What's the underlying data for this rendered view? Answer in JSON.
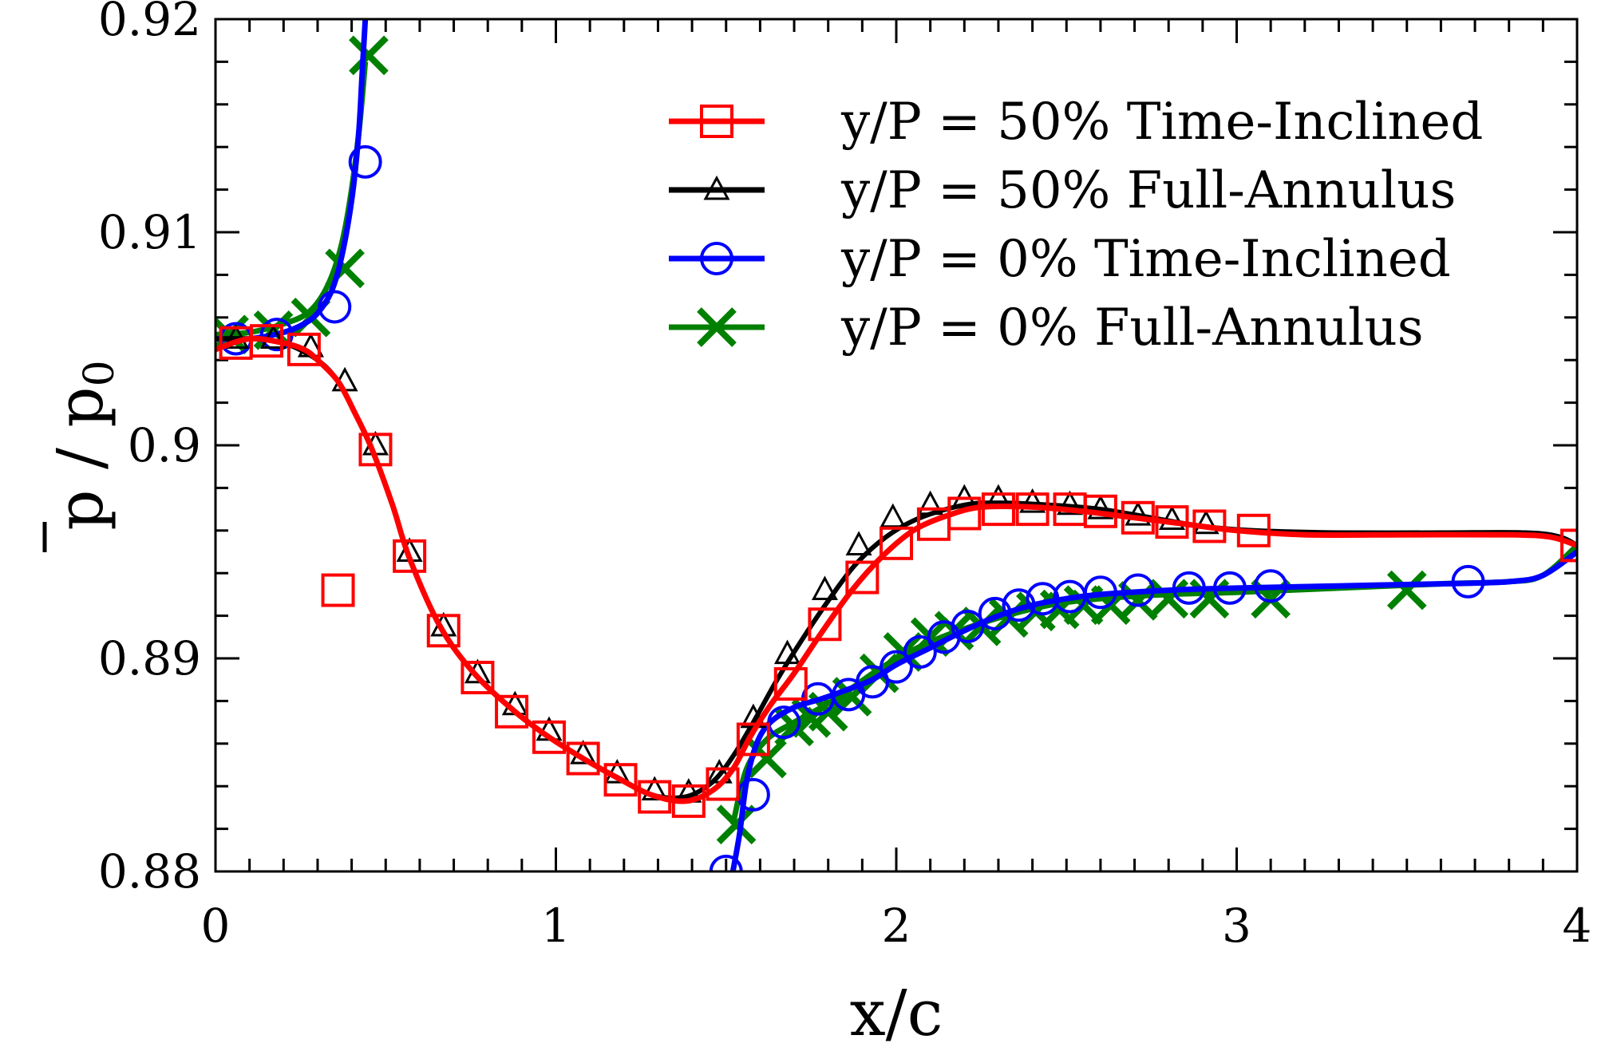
{
  "chart_data": {
    "type": "line",
    "title": "",
    "xlabel": "x/c",
    "ylabel_base": "p",
    "ylabel_sep": " / ",
    "ylabel_den": "p",
    "ylabel_den_sub": "0",
    "xlim": [
      0,
      4
    ],
    "ylim": [
      0.88,
      0.92
    ],
    "xticks": [
      0,
      1,
      2,
      3,
      4
    ],
    "xtick_labels": [
      "0",
      "1",
      "2",
      "3",
      "4"
    ],
    "yticks": [
      0.88,
      0.89,
      0.9,
      0.91,
      0.92
    ],
    "ytick_labels": [
      "0.88",
      "0.89",
      "0.9",
      "0.91",
      "0.92"
    ],
    "legend_position": "top-right",
    "series": [
      {
        "name": "y/P = 50% Time-Inclined",
        "color": "#ff0000",
        "marker": "square",
        "curve": [
          [
            0,
            0.9045
          ],
          [
            0.1,
            0.905
          ],
          [
            0.2,
            0.9048
          ],
          [
            0.26,
            0.9045
          ],
          [
            0.3,
            0.904
          ],
          [
            0.36,
            0.903
          ],
          [
            0.41,
            0.9015
          ],
          [
            0.46,
            0.8998
          ],
          [
            0.52,
            0.8972
          ],
          [
            0.57,
            0.8947
          ],
          [
            0.66,
            0.8915
          ],
          [
            0.76,
            0.8893
          ],
          [
            0.88,
            0.8875
          ],
          [
            0.98,
            0.8863
          ],
          [
            1.08,
            0.8853
          ],
          [
            1.18,
            0.8844
          ],
          [
            1.28,
            0.8836
          ],
          [
            1.38,
            0.8833
          ],
          [
            1.46,
            0.8838
          ],
          [
            1.52,
            0.8848
          ],
          [
            1.57,
            0.8863
          ],
          [
            1.63,
            0.8878
          ],
          [
            1.7,
            0.8893
          ],
          [
            1.78,
            0.8912
          ],
          [
            1.87,
            0.8932
          ],
          [
            1.96,
            0.8948
          ],
          [
            2.05,
            0.896
          ],
          [
            2.15,
            0.8967
          ],
          [
            2.25,
            0.8971
          ],
          [
            2.4,
            0.8971
          ],
          [
            2.55,
            0.8969
          ],
          [
            2.7,
            0.8966
          ],
          [
            2.85,
            0.8963
          ],
          [
            3.0,
            0.896
          ],
          [
            3.2,
            0.8958
          ],
          [
            3.5,
            0.8958
          ],
          [
            3.8,
            0.8958
          ],
          [
            3.92,
            0.8957
          ],
          [
            4.0,
            0.8953
          ]
        ],
        "markers": [
          [
            0.06,
            0.9048
          ],
          [
            0.15,
            0.9049
          ],
          [
            0.26,
            0.9045
          ],
          [
            0.36,
            0.8932
          ],
          [
            0.47,
            0.8998
          ],
          [
            0.57,
            0.8948
          ],
          [
            0.67,
            0.8913
          ],
          [
            0.77,
            0.8891
          ],
          [
            0.87,
            0.8875
          ],
          [
            0.98,
            0.8863
          ],
          [
            1.08,
            0.8853
          ],
          [
            1.19,
            0.8843
          ],
          [
            1.29,
            0.8835
          ],
          [
            1.39,
            0.8833
          ],
          [
            1.49,
            0.8841
          ],
          [
            1.58,
            0.8862
          ],
          [
            1.69,
            0.8888
          ],
          [
            1.79,
            0.8916
          ],
          [
            1.9,
            0.8938
          ],
          [
            2.0,
            0.8954
          ],
          [
            2.11,
            0.8963
          ],
          [
            2.2,
            0.8968
          ],
          [
            2.3,
            0.897
          ],
          [
            2.4,
            0.897
          ],
          [
            2.51,
            0.897
          ],
          [
            2.6,
            0.8969
          ],
          [
            2.71,
            0.8966
          ],
          [
            2.81,
            0.8964
          ],
          [
            2.92,
            0.8962
          ],
          [
            3.05,
            0.896
          ],
          [
            4.0,
            0.8953
          ]
        ]
      },
      {
        "name": "y/P = 50% Full-Annulus",
        "color": "#000000",
        "marker": "triangle",
        "curve": [
          [
            0,
            0.905
          ],
          [
            0.1,
            0.905
          ],
          [
            0.2,
            0.9048
          ],
          [
            0.3,
            0.904
          ],
          [
            0.36,
            0.903
          ],
          [
            0.41,
            0.9015
          ],
          [
            0.46,
            0.8998
          ],
          [
            0.52,
            0.8972
          ],
          [
            0.57,
            0.8947
          ],
          [
            0.66,
            0.8915
          ],
          [
            0.76,
            0.8893
          ],
          [
            0.88,
            0.8875
          ],
          [
            0.98,
            0.8863
          ],
          [
            1.08,
            0.8853
          ],
          [
            1.18,
            0.8844
          ],
          [
            1.28,
            0.8836
          ],
          [
            1.38,
            0.8835
          ],
          [
            1.46,
            0.8842
          ],
          [
            1.52,
            0.8854
          ],
          [
            1.58,
            0.887
          ],
          [
            1.65,
            0.889
          ],
          [
            1.72,
            0.8908
          ],
          [
            1.8,
            0.8927
          ],
          [
            1.88,
            0.8944
          ],
          [
            1.97,
            0.8957
          ],
          [
            2.07,
            0.8966
          ],
          [
            2.2,
            0.8972
          ],
          [
            2.3,
            0.8973
          ],
          [
            2.45,
            0.8972
          ],
          [
            2.6,
            0.897
          ],
          [
            2.75,
            0.8966
          ],
          [
            2.9,
            0.8962
          ],
          [
            3.05,
            0.896
          ],
          [
            3.3,
            0.8959
          ],
          [
            3.6,
            0.8959
          ],
          [
            3.85,
            0.8959
          ],
          [
            3.95,
            0.8957
          ],
          [
            4.0,
            0.8953
          ]
        ],
        "markers": [
          [
            0.06,
            0.905
          ],
          [
            0.17,
            0.905
          ],
          [
            0.28,
            0.9046
          ],
          [
            0.38,
            0.903
          ],
          [
            0.47,
            0.9
          ],
          [
            0.57,
            0.895
          ],
          [
            0.67,
            0.8915
          ],
          [
            0.77,
            0.8893
          ],
          [
            0.88,
            0.8878
          ],
          [
            0.98,
            0.8866
          ],
          [
            1.08,
            0.8855
          ],
          [
            1.18,
            0.8846
          ],
          [
            1.29,
            0.8838
          ],
          [
            1.39,
            0.8837
          ],
          [
            1.48,
            0.8846
          ],
          [
            1.58,
            0.8872
          ],
          [
            1.68,
            0.8902
          ],
          [
            1.79,
            0.8932
          ],
          [
            1.89,
            0.8953
          ],
          [
            1.99,
            0.8966
          ],
          [
            2.1,
            0.8972
          ],
          [
            2.2,
            0.8975
          ],
          [
            2.3,
            0.8975
          ],
          [
            2.4,
            0.8973
          ],
          [
            2.51,
            0.8972
          ],
          [
            2.6,
            0.897
          ],
          [
            2.71,
            0.8967
          ],
          [
            2.81,
            0.8965
          ],
          [
            2.91,
            0.8963
          ]
        ]
      },
      {
        "name": "y/P = 0% Time-Inclined",
        "color": "#0000ff",
        "marker": "circle",
        "curve": [
          [
            0,
            0.905
          ],
          [
            0.1,
            0.905
          ],
          [
            0.2,
            0.9053
          ],
          [
            0.26,
            0.9057
          ],
          [
            0.3,
            0.9062
          ],
          [
            0.34,
            0.9072
          ],
          [
            0.37,
            0.9088
          ],
          [
            0.4,
            0.9115
          ],
          [
            0.42,
            0.9145
          ],
          [
            0.43,
            0.9172
          ],
          [
            0.44,
            0.92
          ]
        ],
        "curve2": [
          [
            1.52,
            0.88
          ],
          [
            1.54,
            0.8818
          ],
          [
            1.56,
            0.8842
          ],
          [
            1.59,
            0.886
          ],
          [
            1.63,
            0.887
          ],
          [
            1.7,
            0.8877
          ],
          [
            1.78,
            0.8881
          ],
          [
            1.85,
            0.8885
          ],
          [
            1.93,
            0.889
          ],
          [
            2.0,
            0.8897
          ],
          [
            2.1,
            0.8905
          ],
          [
            2.2,
            0.8913
          ],
          [
            2.3,
            0.892
          ],
          [
            2.4,
            0.8925
          ],
          [
            2.5,
            0.8928
          ],
          [
            2.6,
            0.893
          ],
          [
            2.8,
            0.8932
          ],
          [
            3.0,
            0.8933
          ],
          [
            3.3,
            0.8934
          ],
          [
            3.6,
            0.8935
          ],
          [
            3.8,
            0.8936
          ],
          [
            3.9,
            0.8939
          ],
          [
            4.0,
            0.895
          ]
        ],
        "markers": [
          [
            0.06,
            0.905
          ],
          [
            0.18,
            0.9052
          ],
          [
            0.35,
            0.9065
          ],
          [
            0.44,
            0.9133
          ],
          [
            1.5,
            0.88
          ],
          [
            1.58,
            0.8836
          ],
          [
            1.67,
            0.887
          ],
          [
            1.77,
            0.8881
          ],
          [
            1.86,
            0.8883
          ],
          [
            1.93,
            0.8889
          ],
          [
            2.0,
            0.8896
          ],
          [
            2.07,
            0.8903
          ],
          [
            2.14,
            0.891
          ],
          [
            2.21,
            0.8915
          ],
          [
            2.29,
            0.8921
          ],
          [
            2.36,
            0.8925
          ],
          [
            2.43,
            0.8928
          ],
          [
            2.51,
            0.8929
          ],
          [
            2.6,
            0.8931
          ],
          [
            2.71,
            0.8932
          ],
          [
            2.86,
            0.8933
          ],
          [
            2.98,
            0.8933
          ],
          [
            3.1,
            0.8934
          ],
          [
            3.68,
            0.8936
          ]
        ]
      },
      {
        "name": "y/P = 0% Full-Annulus",
        "color": "#008000",
        "marker": "x",
        "curve": [
          [
            0,
            0.9052
          ],
          [
            0.1,
            0.9053
          ],
          [
            0.2,
            0.9057
          ],
          [
            0.27,
            0.9062
          ],
          [
            0.32,
            0.9072
          ],
          [
            0.36,
            0.9088
          ],
          [
            0.39,
            0.911
          ],
          [
            0.42,
            0.9145
          ],
          [
            0.44,
            0.918
          ]
        ],
        "curve2": [
          [
            1.52,
            0.8822
          ],
          [
            1.56,
            0.8848
          ],
          [
            1.62,
            0.8862
          ],
          [
            1.7,
            0.887
          ],
          [
            1.78,
            0.8877
          ],
          [
            1.86,
            0.8885
          ],
          [
            1.95,
            0.8895
          ],
          [
            2.05,
            0.8904
          ],
          [
            2.15,
            0.8911
          ],
          [
            2.3,
            0.8919
          ],
          [
            2.45,
            0.8925
          ],
          [
            2.6,
            0.8928
          ],
          [
            2.8,
            0.893
          ],
          [
            3.0,
            0.8931
          ],
          [
            3.3,
            0.8933
          ],
          [
            3.6,
            0.8935
          ],
          [
            3.8,
            0.8936
          ],
          [
            3.9,
            0.8939
          ],
          [
            4.0,
            0.8953
          ]
        ],
        "markers": [
          [
            0.04,
            0.9052
          ],
          [
            0.17,
            0.9054
          ],
          [
            0.28,
            0.906
          ],
          [
            0.38,
            0.9083
          ],
          [
            0.45,
            0.9183
          ],
          [
            1.53,
            0.8822
          ],
          [
            1.62,
            0.8853
          ],
          [
            1.7,
            0.8868
          ],
          [
            1.75,
            0.8872
          ],
          [
            1.8,
            0.8875
          ],
          [
            1.87,
            0.8882
          ],
          [
            1.95,
            0.8893
          ],
          [
            2.02,
            0.8903
          ],
          [
            2.1,
            0.891
          ],
          [
            2.17,
            0.8913
          ],
          [
            2.25,
            0.8915
          ],
          [
            2.33,
            0.8919
          ],
          [
            2.41,
            0.8922
          ],
          [
            2.48,
            0.8923
          ],
          [
            2.55,
            0.8925
          ],
          [
            2.63,
            0.8925
          ],
          [
            2.71,
            0.8927
          ],
          [
            2.8,
            0.8928
          ],
          [
            2.92,
            0.8928
          ],
          [
            3.1,
            0.8928
          ],
          [
            3.5,
            0.8932
          ]
        ]
      }
    ]
  }
}
